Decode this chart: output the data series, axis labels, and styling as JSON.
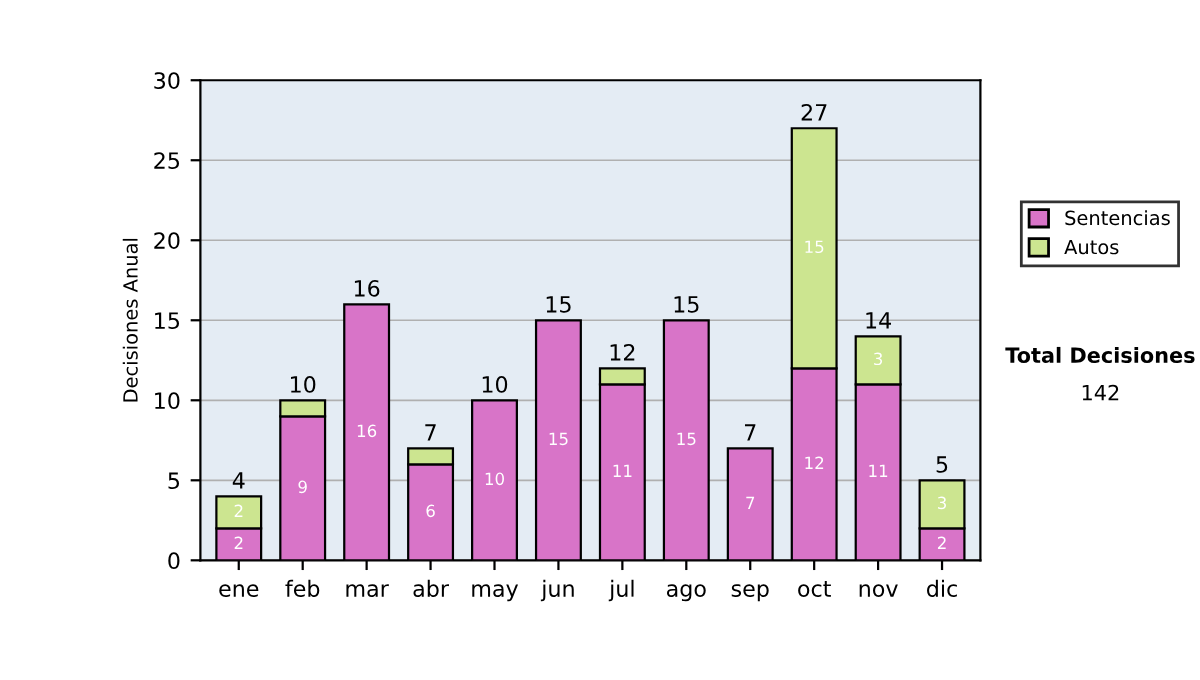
{
  "chart_data": {
    "type": "bar",
    "stacked": true,
    "ylabel": "Decisiones Anual",
    "categories": [
      "ene",
      "feb",
      "mar",
      "abr",
      "may",
      "jun",
      "jul",
      "ago",
      "sep",
      "oct",
      "nov",
      "dic"
    ],
    "series": [
      {
        "name": "Sentencias",
        "color": "#d874c8",
        "values": [
          2,
          9,
          16,
          6,
          10,
          15,
          11,
          15,
          7,
          12,
          11,
          2
        ],
        "value_labels": [
          "2",
          "9",
          "16",
          "6",
          "10",
          "15",
          "11",
          "15",
          "7",
          "12",
          "11",
          "2"
        ]
      },
      {
        "name": "Autos",
        "color": "#cce590",
        "values": [
          2,
          1,
          null,
          1,
          null,
          null,
          1,
          null,
          null,
          15,
          3,
          3
        ],
        "value_labels": [
          "2",
          null,
          null,
          null,
          null,
          null,
          null,
          null,
          null,
          "15",
          "3",
          "3"
        ]
      }
    ],
    "totals": [
      "4",
      "10",
      "16",
      "7",
      "10",
      "15",
      "12",
      "15",
      "7",
      "27",
      "14",
      "5"
    ],
    "ylim": [
      0,
      30
    ],
    "yticks": [
      0,
      5,
      10,
      15,
      20,
      25,
      30
    ],
    "grid": "y",
    "legend": "right",
    "annotations": [
      "Total Decisiones",
      "142"
    ]
  }
}
